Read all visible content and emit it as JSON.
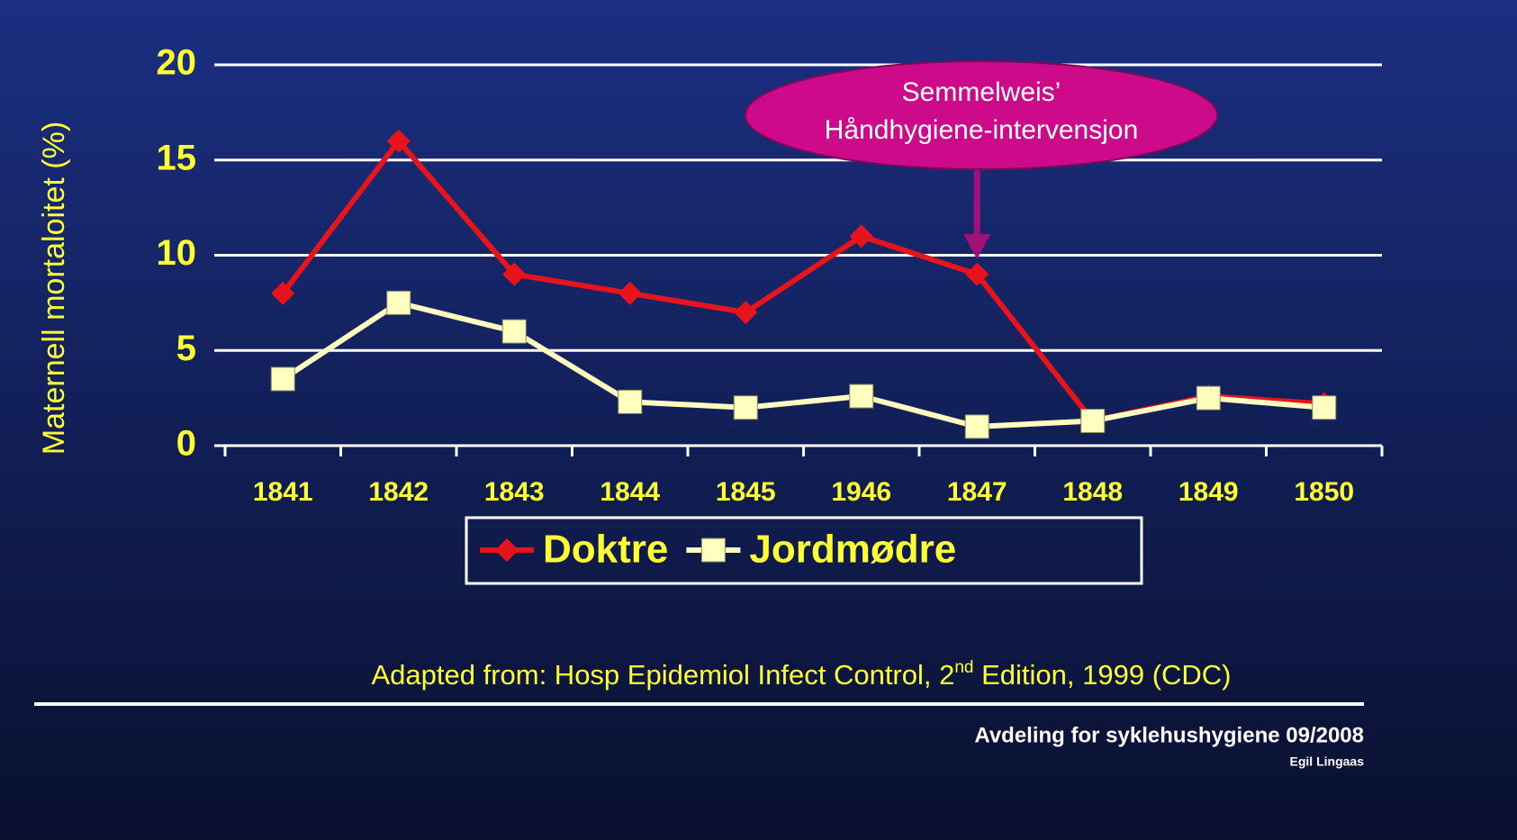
{
  "chart_data": {
    "type": "line",
    "ylabel": "Maternell mortaloitet (%)",
    "categories": [
      "1841",
      "1842",
      "1843",
      "1844",
      "1845",
      "1946",
      "1847",
      "1848",
      "1849",
      "1850"
    ],
    "series": [
      {
        "name": "Doktre",
        "color": "#e8141c",
        "marker": "diamond",
        "values": [
          8,
          16,
          9,
          8,
          7,
          11,
          9,
          1.3,
          2.6,
          2.2
        ]
      },
      {
        "name": "Jordmødre",
        "color": "#ffffc0",
        "marker": "square",
        "values": [
          3.5,
          7.5,
          6,
          2.3,
          2,
          2.6,
          1,
          1.3,
          2.5,
          2
        ]
      }
    ],
    "ylim": [
      0,
      20
    ],
    "yticks": [
      0,
      5,
      10,
      15,
      20
    ],
    "grid": true,
    "legend": "bottom",
    "annotation": {
      "lines": [
        "Semmelweis’",
        "Håndhygiene-intervensjon"
      ],
      "category": 6,
      "color": "#cc0a8a"
    },
    "source": [
      "Adapted from: Hosp Epidemiol Infect Control, 2",
      "nd",
      " Edition, 1999 (CDC)"
    ],
    "footer": [
      "Avdeling for syklehushygiene 09/2008",
      "Egil Lingaas"
    ]
  }
}
